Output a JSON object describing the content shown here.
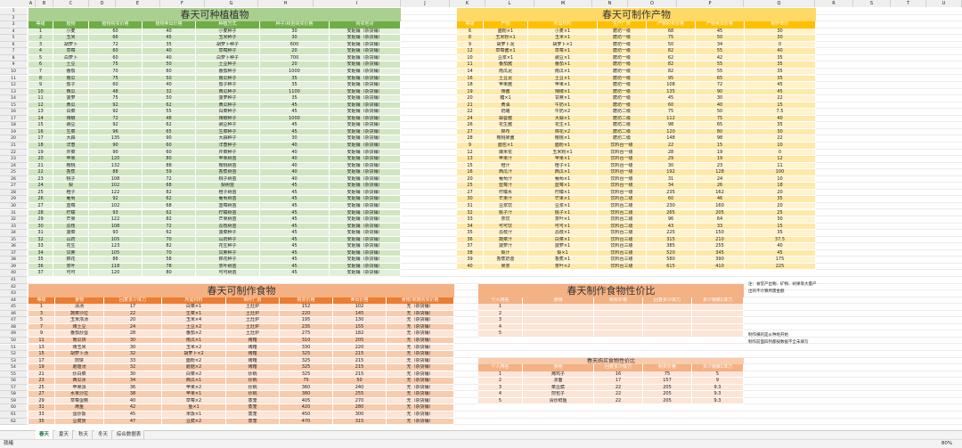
{
  "sheet": {
    "columns": [
      "A",
      "B",
      "C",
      "D",
      "E",
      "F",
      "G",
      "H",
      "I",
      "J",
      "K",
      "L",
      "M",
      "N",
      "O",
      "P",
      "Q",
      "R",
      "S",
      "T",
      "U"
    ],
    "row_numbers": [
      1,
      2,
      3,
      4,
      5,
      6,
      7,
      8,
      9,
      10,
      11,
      12,
      13,
      14,
      15,
      16,
      17,
      18,
      19,
      20,
      21,
      22,
      23,
      24,
      25,
      26,
      27,
      28,
      29,
      30,
      31,
      32,
      33,
      34,
      35,
      36,
      37,
      38,
      39,
      40,
      41,
      42,
      43,
      44,
      45,
      46,
      47,
      48,
      49,
      50,
      51,
      52,
      53,
      54,
      55,
      56,
      57,
      58,
      59,
      60,
      61,
      62
    ],
    "tables": [
      {
        "title": "春天可种植植物",
        "headers": [
          "等级",
          "植物",
          "植物购买价格",
          "植物卖出价格",
          "种植方式",
          "种子/树苗购买价格",
          "购买地点"
        ],
        "rows": [
          [
            1,
            "小麦",
            60,
            40,
            "小麦种子",
            30,
            "安妮铺（杂货铺）"
          ],
          [
            2,
            "玉米",
            66,
            45,
            "玉米种子",
            30,
            "安妮铺（杂货铺）"
          ],
          [
            3,
            "胡萝卜",
            72,
            35,
            "胡萝卜种子",
            600,
            "安妮铺（杂货铺）"
          ],
          [
            4,
            "草莓",
            60,
            40,
            "草莓种子",
            20,
            "安妮铺（杂货铺）"
          ],
          [
            5,
            "白萝卜",
            60,
            40,
            "白萝卜种子",
            700,
            "安妮铺（杂货铺）"
          ],
          [
            6,
            "土豆",
            75,
            50,
            "土豆种子",
            20,
            "安妮铺（杂货铺）"
          ],
          [
            7,
            "番茄",
            70,
            60,
            "番茄种子",
            1000,
            "安妮铺（杂货铺）"
          ],
          [
            8,
            "南瓜",
            75,
            50,
            "南瓜种子",
            35,
            "安妮铺（杂货铺）"
          ],
          [
            9,
            "茄子",
            60,
            40,
            "茄子种子",
            35,
            "安妮铺（杂货铺）"
          ],
          [
            10,
            "西瓜",
            48,
            32,
            "西瓜种子",
            1100,
            "安妮铺（杂货铺）"
          ],
          [
            11,
            "菠萝",
            75,
            50,
            "菠萝种子",
            35,
            "安妮铺（杂货铺）"
          ],
          [
            12,
            "黄瓜",
            92,
            62,
            "黄瓜种子",
            45,
            "安妮铺（杂货铺）"
          ],
          [
            13,
            "白菜",
            92,
            55,
            "白菜种子",
            45,
            "安妮铺（杂货铺）"
          ],
          [
            14,
            "辣椒",
            72,
            48,
            "辣椒种子",
            1000,
            "安妮铺（杂货铺）"
          ],
          [
            15,
            "豌豆",
            92,
            62,
            "豌豆种子",
            45,
            "安妮铺（杂货铺）"
          ],
          [
            16,
            "生菜",
            96,
            65,
            "生菜种子",
            45,
            "安妮铺（杂货铺）"
          ],
          [
            17,
            "大蒜",
            135,
            90,
            "大蒜种子",
            30,
            "安妮铺（杂货铺）"
          ],
          [
            18,
            "洋葱",
            90,
            60,
            "洋葱种子",
            40,
            "安妮铺（杂货铺）"
          ],
          [
            19,
            "芹菜",
            90,
            60,
            "芹菜种子",
            40,
            "安妮铺（杂货铺）"
          ],
          [
            20,
            "苹果",
            120,
            80,
            "苹果树苗",
            40,
            "安妮铺（杂货铺）"
          ],
          [
            21,
            "樱桃",
            132,
            88,
            "樱桃树苗",
            40,
            "安妮铺（杂货铺）"
          ],
          [
            22,
            "香蕉",
            88,
            59,
            "香蕉树苗",
            40,
            "安妮铺（杂货铺）"
          ],
          [
            23,
            "桃子",
            108,
            72,
            "桃子树苗",
            40,
            "安妮铺（杂货铺）"
          ],
          [
            24,
            "梨",
            102,
            68,
            "梨树苗",
            45,
            "安妮铺（杂货铺）"
          ],
          [
            25,
            "橙子",
            122,
            82,
            "橙子树苗",
            45,
            "安妮铺（杂货铺）"
          ],
          [
            26,
            "葡萄",
            92,
            62,
            "葡萄树苗",
            45,
            "安妮铺（杂货铺）"
          ],
          [
            27,
            "蓝莓",
            102,
            68,
            "蓝莓树苗",
            45,
            "安妮铺（杂货铺）"
          ],
          [
            28,
            "柠檬",
            93,
            62,
            "柠檬树苗",
            45,
            "安妮铺（杂货铺）"
          ],
          [
            29,
            "芒果",
            122,
            82,
            "芒果树苗",
            45,
            "安妮铺（杂货铺）"
          ],
          [
            30,
            "荔枝",
            108,
            72,
            "荔枝树苗",
            45,
            "安妮铺（杂货铺）"
          ],
          [
            31,
            "菠菜",
            93,
            62,
            "菠菜种子",
            45,
            "安妮铺（杂货铺）"
          ],
          [
            32,
            "山药",
            105,
            70,
            "山药种子",
            45,
            "安妮铺（杂货铺）"
          ],
          [
            33,
            "花生",
            123,
            82,
            "花生种子",
            45,
            "安妮铺（杂货铺）"
          ],
          [
            34,
            "甘蔗",
            105,
            70,
            "甘蔗种子",
            45,
            "安妮铺（杂货铺）"
          ],
          [
            35,
            "棉花",
            86,
            58,
            "棉花种子",
            45,
            "安妮铺（杂货铺）"
          ],
          [
            36,
            "茶叶",
            118,
            78,
            "茶叶树苗",
            45,
            "安妮铺（杂货铺）"
          ],
          [
            37,
            "可可",
            120,
            80,
            "可可树苗",
            45,
            "安妮铺（杂货铺）"
          ]
        ]
      },
      {
        "title": "春天可制作产物",
        "headers": [
          "等级",
          "产物",
          "所需材料",
          "生产厂房",
          "产物购买价格",
          "产物卖出价格",
          "制作单价"
        ],
        "rows": [
          [
            6,
            "面粉×1",
            "小麦×1",
            "磨坊一级",
            68,
            45,
            30
          ],
          [
            8,
            "玉米粉×1",
            "玉米×1",
            "磨坊一级",
            75,
            50,
            30
          ],
          [
            9,
            "胡萝卜泥",
            "胡萝卜×1",
            "磨坊一级",
            50,
            34,
            0
          ],
          [
            12,
            "草莓酱×1",
            "草莓×1",
            "磨坊一级",
            82,
            55,
            40
          ],
          [
            10,
            "豆浆×1",
            "豌豆×1",
            "磨坊一级",
            62,
            42,
            35
          ],
          [
            11,
            "番茄酱",
            "番茄×1",
            "磨坊一级",
            82,
            55,
            35
          ],
          [
            14,
            "南瓜泥",
            "南瓜×1",
            "磨坊一级",
            82,
            55,
            35
          ],
          [
            16,
            "土豆泥",
            "土豆×1",
            "磨坊一级",
            95,
            65,
            35
          ],
          [
            18,
            "苹果酱",
            "苹果×1",
            "磨坊一级",
            108,
            72,
            45
          ],
          [
            19,
            "辣酱",
            "辣椒×1",
            "磨坊一级",
            135,
            90,
            45
          ],
          [
            20,
            "糖×1",
            "甘蔗×1",
            "磨坊一级",
            45,
            30,
            22
          ],
          [
            21,
            "黄油",
            "牛奶×1",
            "磨坊一级",
            60,
            40,
            15
          ],
          [
            22,
            "奶酪",
            "牛奶×2",
            "磨坊二级",
            75,
            50,
            7.5
          ],
          [
            24,
            "蒜蓉酱",
            "大蒜×1",
            "磨坊二级",
            112,
            75,
            40
          ],
          [
            26,
            "花生酱",
            "花生×1",
            "磨坊二级",
            98,
            65,
            35
          ],
          [
            27,
            "棉布",
            "棉花×2",
            "磨坊二级",
            120,
            80,
            30
          ],
          [
            28,
            "樱桃果酱",
            "樱桃×1",
            "磨坊二级",
            148,
            98,
            22
          ],
          [
            9,
            "面包×1",
            "面粉×1",
            "饮料台一级",
            22,
            15,
            10
          ],
          [
            12,
            "爆米花",
            "玉米粉×1",
            "饮料台一级",
            28,
            19,
            0
          ],
          [
            13,
            "苹果汁",
            "苹果×1",
            "饮料台一级",
            29,
            19,
            12
          ],
          [
            15,
            "橙汁",
            "橙子×1",
            "饮料台一级",
            30,
            23,
            11
          ],
          [
            16,
            "西瓜汁",
            "西瓜×1",
            "饮料台一级",
            192,
            128,
            100
          ],
          [
            20,
            "葡萄汁",
            "葡萄×1",
            "饮料台一级",
            31,
            24,
            10
          ],
          [
            25,
            "蓝莓汁",
            "蓝莓×1",
            "饮料台一级",
            34,
            26,
            18
          ],
          [
            27,
            "柠檬水",
            "柠檬×1",
            "饮料台一级",
            235,
            162,
            20
          ],
          [
            30,
            "芒果汁",
            "芒果×1",
            "饮料台二级",
            60,
            46,
            35
          ],
          [
            31,
            "豆浆饮",
            "豆浆×1",
            "饮料台二级",
            230,
            160,
            20
          ],
          [
            32,
            "桃子汁",
            "桃子×1",
            "饮料台二级",
            265,
            205,
            25
          ],
          [
            33,
            "茶饮",
            "茶叶×1",
            "饮料台二级",
            96,
            64,
            30
          ],
          [
            34,
            "可可饮",
            "可可×1",
            "饮料台二级",
            43,
            33,
            15
          ],
          [
            35,
            "荔枝汁",
            "荔枝×1",
            "饮料台二级",
            225,
            150,
            35
          ],
          [
            36,
            "蔬菜汁",
            "白菜×1",
            "饮料台三级",
            315,
            210,
            37.5
          ],
          [
            37,
            "菠萝汁",
            "菠萝×1",
            "饮料台三级",
            385,
            255,
            40
          ],
          [
            38,
            "梨汁",
            "梨×1",
            "饮料台三级",
            520,
            345,
            45
          ],
          [
            39,
            "香蕉奶昔",
            "香蕉×1",
            "饮料台三级",
            580,
            390,
            175
          ],
          [
            40,
            "果茶",
            "茶叶×2",
            "饮料台三级",
            615,
            410,
            225
          ]
        ]
      },
      {
        "title": "春天可制作食物",
        "headers": [
          "等级",
          "食物",
          "回复多少体力",
          "所需材料",
          "制作厂房",
          "购买价格",
          "卖出价格",
          "食物/果蔬购买价格"
        ],
        "rows": [
          [
            1,
            "清汤",
            17,
            "白菜×1",
            "土灶炉",
            152,
            102,
            "无（杂货铺）"
          ],
          [
            3,
            "蔬菜沙拉",
            22,
            "生菜×1",
            "土灶炉",
            220,
            145,
            "无（杂货铺）"
          ],
          [
            5,
            "玉米浓汤",
            20,
            "玉米×4",
            "土灶炉",
            195,
            130,
            "无（杂货铺）"
          ],
          [
            7,
            "烤土豆",
            24,
            "土豆×2",
            "土灶炉",
            235,
            155,
            "无（杂货铺）"
          ],
          [
            9,
            "番茄炒蛋",
            28,
            "番茄×2",
            "土灶炉",
            275,
            182,
            "无（杂货铺）"
          ],
          [
            11,
            "南瓜饼",
            30,
            "南瓜×1",
            "烤箱",
            310,
            205,
            "无（杂货铺）"
          ],
          [
            13,
            "烤玉米",
            30,
            "玉米×2",
            "烤箱",
            330,
            220,
            "无（杂货铺）"
          ],
          [
            15,
            "胡萝卜汤",
            32,
            "胡萝卜×2",
            "烤箱",
            325,
            215,
            "无（杂货铺）"
          ],
          [
            17,
            "煎饼",
            33,
            "面粉×2",
            "烤箱",
            325,
            215,
            "无（杂货铺）"
          ],
          [
            19,
            "蘑菇汤",
            32,
            "蘑菇×2",
            "烤箱",
            325,
            215,
            "无（杂货铺）"
          ],
          [
            21,
            "炒白菜",
            30,
            "白菜×2",
            "炒锅",
            325,
            215,
            "无（杂货铺）"
          ],
          [
            23,
            "西瓜冰",
            34,
            "西瓜×1",
            "炒锅",
            75,
            50,
            "无（杂货铺）"
          ],
          [
            25,
            "苹果派",
            36,
            "苹果×2",
            "炒锅",
            360,
            240,
            "无（杂货铺）"
          ],
          [
            27,
            "水果沙拉",
            38,
            "苹果×1",
            "炒锅",
            380,
            255,
            "无（杂货铺）"
          ],
          [
            29,
            "草莓蛋糕",
            40,
            "草莓×2",
            "蒸笼",
            405,
            270,
            "无（杂货铺）"
          ],
          [
            31,
            "烤鱼",
            42,
            "鱼×1",
            "蒸笼",
            420,
            280,
            "无（杂货铺）"
          ],
          [
            33,
            "蛋炒饭",
            45,
            "米饭×1",
            "蒸笼",
            450,
            300,
            "无（杂货铺）"
          ],
          [
            35,
            "豆腐煲",
            47,
            "豆腐×2",
            "蒸笼",
            470,
            315,
            "无（杂货铺）"
          ]
        ]
      },
      {
        "title": "春天制作食物性价比",
        "headers": [
          "个人排名",
          "食物",
          "购买价格",
          "回复多少体力",
          "多少钢镐1体力"
        ],
        "rows": [
          [
            1
          ],
          [
            2
          ],
          [
            3
          ],
          [
            4
          ],
          [
            5
          ]
        ]
      },
      {
        "title": "春天购买食物性价比",
        "headers": [
          "个人排名",
          "食物",
          "回复多少体力",
          "购买价格",
          "多少钢镐1体力"
        ],
        "rows": [
          [
            1,
            "烤鸡子",
            16,
            75,
            5
          ],
          [
            2,
            "凉面",
            17,
            157,
            9
          ],
          [
            3,
            "菜豆腐",
            22,
            205,
            9.3
          ],
          [
            4,
            "煎包子",
            22,
            205,
            9.3
          ],
          [
            5,
            "清炒鲜鱼",
            22,
            205,
            9.3
          ]
        ]
      }
    ],
    "notes": [
      "注：食堂产出物、矿物、树果等大量产出的不计算所需金额",
      "制作横的是从种地开始",
      "制作前面四列都按数据不全未填写"
    ],
    "tabs": [
      "春天",
      "夏天",
      "秋天",
      "冬天",
      "综合数据表"
    ],
    "status": {
      "left": "就绪",
      "zoom": "80%"
    }
  }
}
